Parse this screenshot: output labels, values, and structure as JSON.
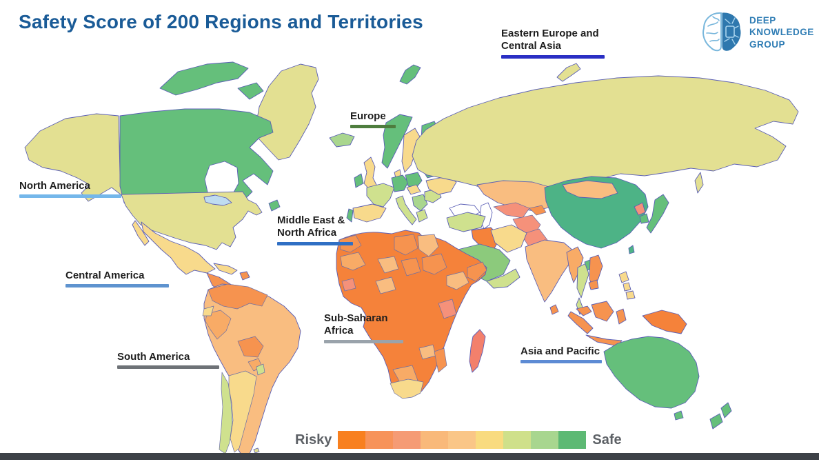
{
  "title": "Safety Score of 200 Regions and Territories",
  "title_color": "#1a5b97",
  "logo": {
    "line1": "DEEP",
    "line2": "KNOWLEDGE",
    "line3": "GROUP",
    "color": "#2e7cb4"
  },
  "regions": [
    {
      "id": "eastern-europe-central-asia",
      "label": "Eastern Europe and Central Asia",
      "underline_color": "#2a2fc4"
    },
    {
      "id": "europe",
      "label": "Europe",
      "underline_color": "#4e7d3e"
    },
    {
      "id": "north-america",
      "label": "North America",
      "underline_color": "#74b7ea"
    },
    {
      "id": "middle-east-north-africa",
      "label": "Middle East & North Africa",
      "underline_color": "#2f6fc4"
    },
    {
      "id": "central-america",
      "label": "Central America",
      "underline_color": "#5e93cf"
    },
    {
      "id": "sub-saharan-africa",
      "label": "Sub-Saharan Africa",
      "underline_color": "#9aa3ab"
    },
    {
      "id": "south-america",
      "label": "South America",
      "underline_color": "#6e7277"
    },
    {
      "id": "asia-and-pacific",
      "label": "Asia and Pacific",
      "underline_color": "#5d8bd4"
    }
  ],
  "legend": {
    "risky_label": "Risky",
    "safe_label": "Safe",
    "colors": [
      "#f8801f",
      "#f7935a",
      "#f59b75",
      "#f9b97a",
      "#fac687",
      "#f9db7f",
      "#cfe08a",
      "#a8d68f",
      "#5db974"
    ]
  },
  "map_palette": {
    "khaki": "#e3e092",
    "green": "#65bf7b",
    "green_dark": "#4db386",
    "green_light": "#a9d68e",
    "green_saudi": "#8cca7c",
    "yellow": "#f8da8c",
    "yellow_green": "#cfe18e",
    "peach": "#f9bd80",
    "light_orange": "#f8ab66",
    "orange": "#f5823a",
    "orange_mid": "#f6934f",
    "salmon": "#f5917a",
    "salmon_red": "#f3806c",
    "sea": "#ffffff",
    "lake": "#bfdcf0"
  }
}
